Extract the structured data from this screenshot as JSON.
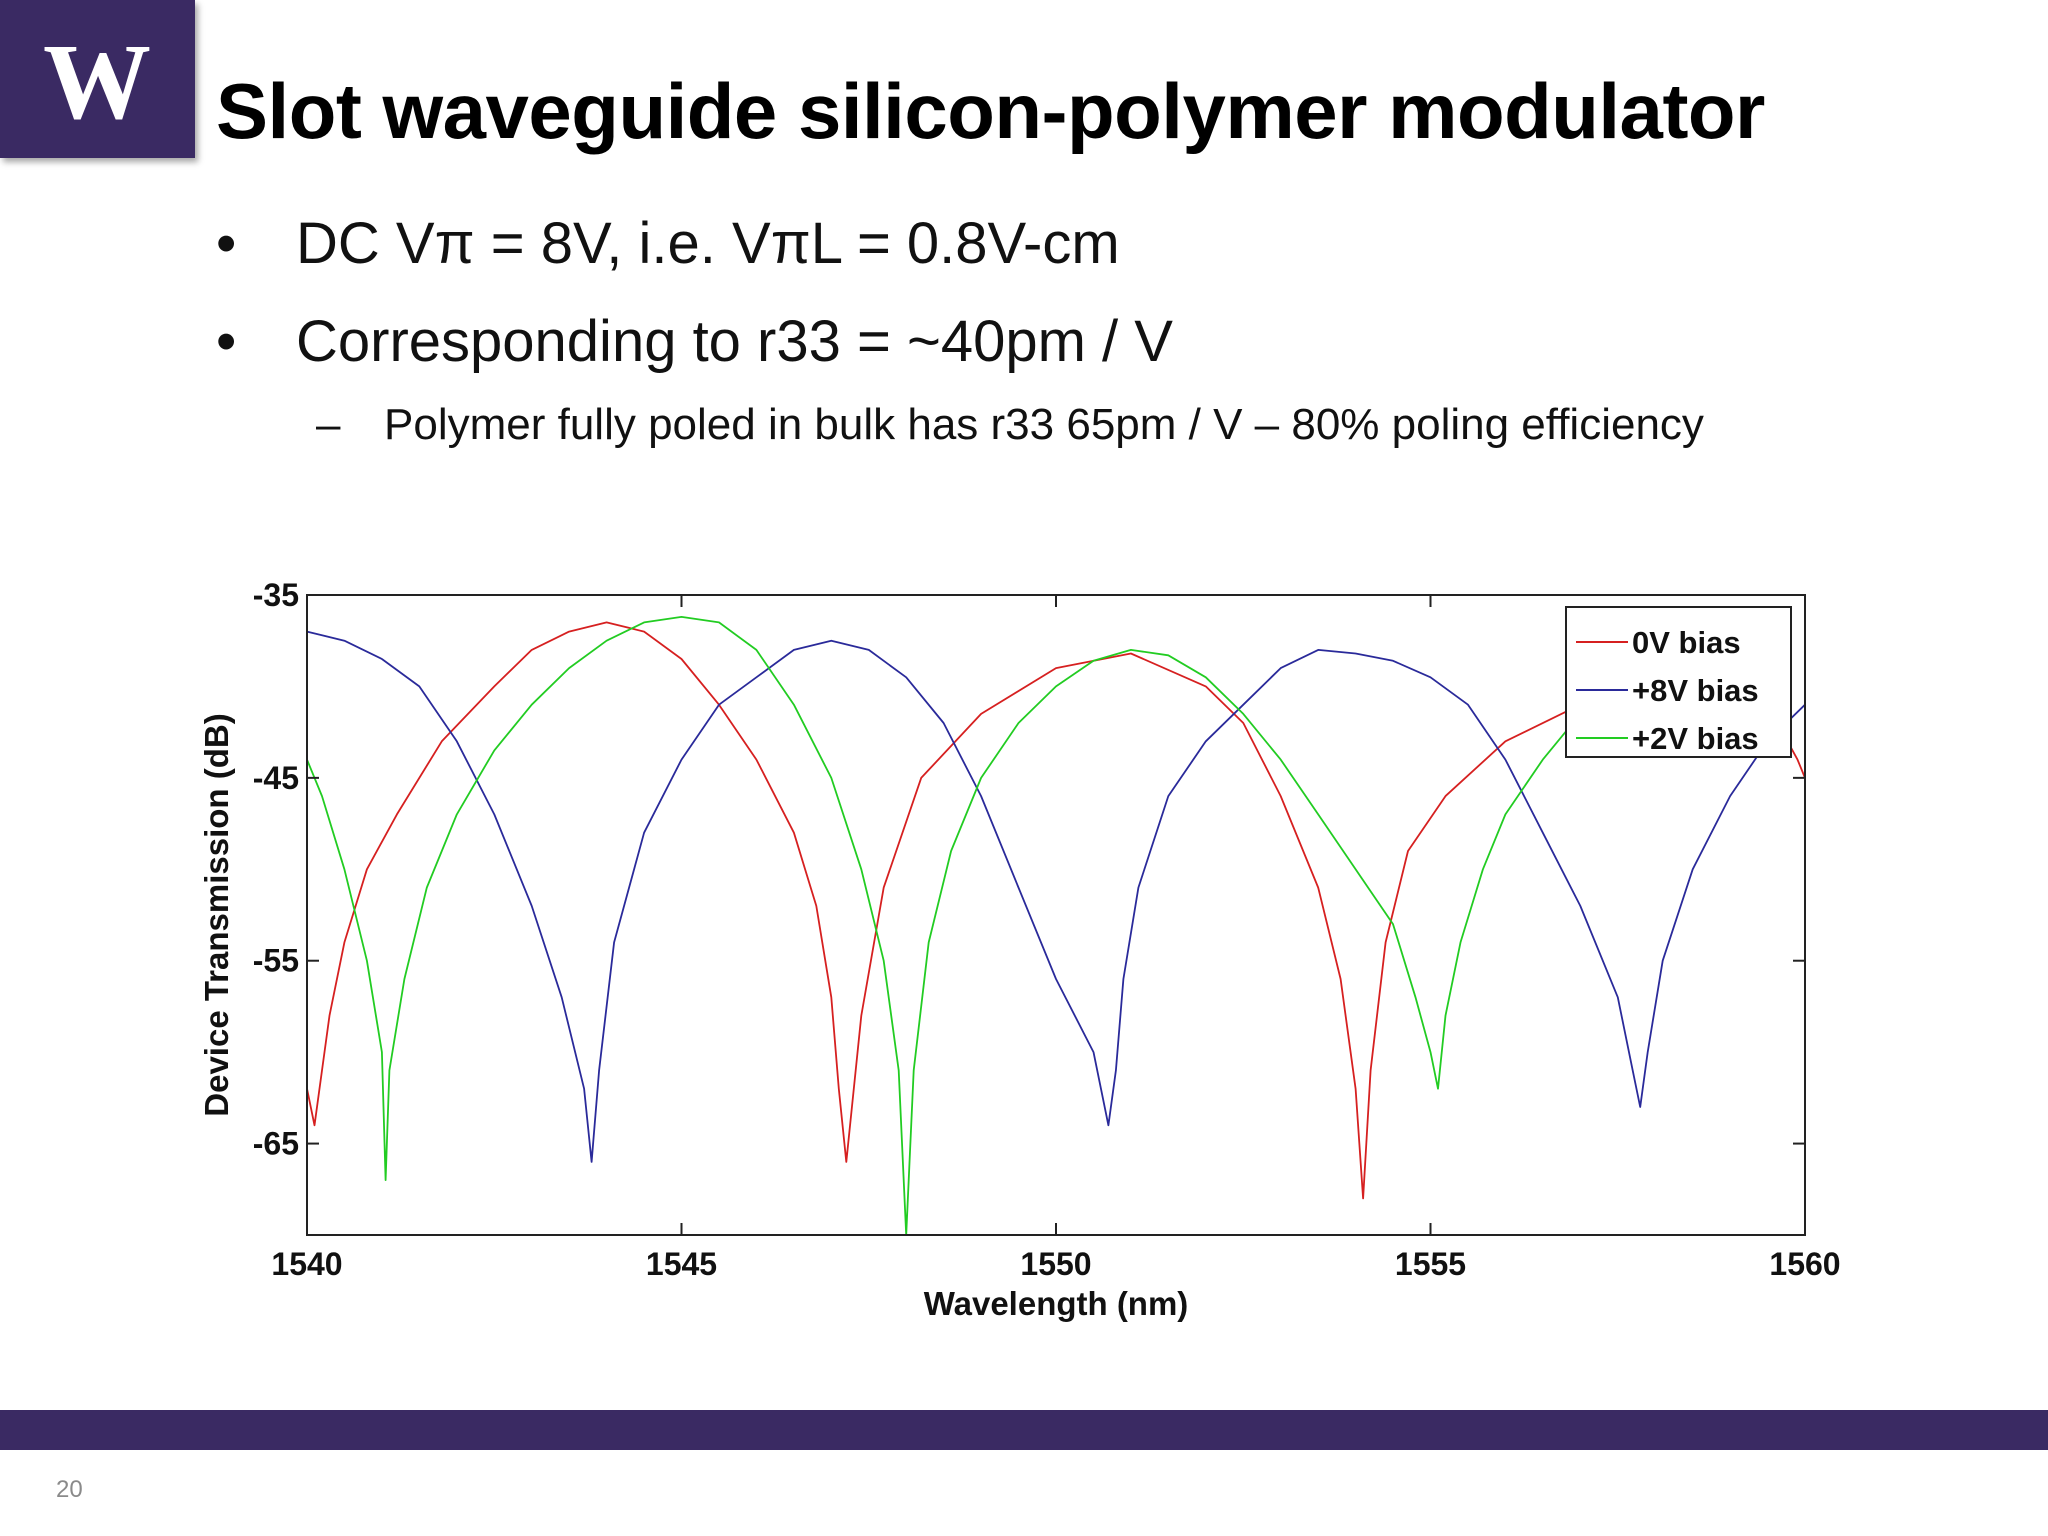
{
  "slide": {
    "logo_letter": "W",
    "title": "Slot waveguide silicon-polymer modulator",
    "bullets": [
      "DC Vπ = 8V, i.e. VπL = 0.8V-cm",
      "Corresponding to r33 = ~40pm / V"
    ],
    "sub_bullet": "Polymer fully poled in bulk has r33 65pm / V – 80% poling efficiency",
    "bullet_marker": "•",
    "sub_bullet_marker": "–",
    "page_number": "20",
    "brand_color": "#3a2a63"
  },
  "chart_data": {
    "type": "line",
    "title": "",
    "xlabel": "Wavelength (nm)",
    "ylabel": "Device Transmission (dB)",
    "xlim": [
      1540,
      1560
    ],
    "ylim": [
      -70,
      -35
    ],
    "x_ticks": [
      1540,
      1545,
      1550,
      1555,
      1560
    ],
    "y_ticks": [
      -35,
      -45,
      -55,
      -65
    ],
    "legend_position": "top-right",
    "grid": false,
    "series": [
      {
        "name": "0V bias",
        "color": "#d62020",
        "x": [
          1540.0,
          1540.1,
          1540.2,
          1540.3,
          1540.5,
          1540.8,
          1541.2,
          1541.8,
          1542.5,
          1543.0,
          1543.5,
          1544.0,
          1544.5,
          1545.0,
          1545.5,
          1546.0,
          1546.5,
          1546.8,
          1547.0,
          1547.1,
          1547.2,
          1547.4,
          1547.7,
          1548.2,
          1549.0,
          1550.0,
          1551.0,
          1552.0,
          1552.5,
          1553.0,
          1553.5,
          1553.8,
          1554.0,
          1554.1,
          1554.2,
          1554.4,
          1554.7,
          1555.2,
          1556.0,
          1557.0,
          1558.0,
          1559.0,
          1559.5,
          1559.9,
          1560.0
        ],
        "y": [
          -62,
          -64,
          -61,
          -58,
          -54,
          -50,
          -47,
          -43,
          -40,
          -38,
          -37,
          -36.5,
          -37,
          -38.5,
          -41,
          -44,
          -48,
          -52,
          -57,
          -62,
          -66,
          -58,
          -51,
          -45,
          -41.5,
          -39,
          -38.2,
          -40,
          -42,
          -46,
          -51,
          -56,
          -62,
          -68,
          -61,
          -54,
          -49,
          -46,
          -43,
          -41,
          -39.5,
          -39.5,
          -41,
          -44,
          -45
        ]
      },
      {
        "name": "+8V bias",
        "color": "#2a2a9a",
        "x": [
          1540.0,
          1540.5,
          1541.0,
          1541.5,
          1542.0,
          1542.5,
          1543.0,
          1543.4,
          1543.7,
          1543.8,
          1543.9,
          1544.1,
          1544.5,
          1545.0,
          1545.5,
          1546.0,
          1546.5,
          1547.0,
          1547.5,
          1548.0,
          1548.5,
          1549.0,
          1549.5,
          1550.0,
          1550.5,
          1550.7,
          1550.8,
          1550.9,
          1551.1,
          1551.5,
          1552.0,
          1552.5,
          1553.0,
          1553.5,
          1554.0,
          1554.5,
          1555.0,
          1555.5,
          1556.0,
          1556.5,
          1557.0,
          1557.5,
          1557.7,
          1557.8,
          1557.9,
          1558.1,
          1558.5,
          1559.0,
          1559.5,
          1560.0
        ],
        "y": [
          -37,
          -37.5,
          -38.5,
          -40,
          -43,
          -47,
          -52,
          -57,
          -62,
          -66,
          -61,
          -54,
          -48,
          -44,
          -41,
          -39.5,
          -38,
          -37.5,
          -38,
          -39.5,
          -42,
          -46,
          -51,
          -56,
          -60,
          -64,
          -61,
          -56,
          -51,
          -46,
          -43,
          -41,
          -39,
          -38,
          -38.2,
          -38.6,
          -39.5,
          -41,
          -44,
          -48,
          -52,
          -57,
          -61,
          -63,
          -60,
          -55,
          -50,
          -46,
          -43,
          -41
        ]
      },
      {
        "name": "+2V bias",
        "color": "#22cc22",
        "x": [
          1540.0,
          1540.2,
          1540.5,
          1540.8,
          1541.0,
          1541.05,
          1541.1,
          1541.3,
          1541.6,
          1542.0,
          1542.5,
          1543.0,
          1543.5,
          1544.0,
          1544.5,
          1545.0,
          1545.5,
          1546.0,
          1546.5,
          1547.0,
          1547.4,
          1547.7,
          1547.9,
          1548.0,
          1548.1,
          1548.3,
          1548.6,
          1549.0,
          1549.5,
          1550.0,
          1550.5,
          1551.0,
          1551.5,
          1552.0,
          1552.5,
          1553.0,
          1553.5,
          1554.0,
          1554.5,
          1554.8,
          1555.0,
          1555.1,
          1555.2,
          1555.4,
          1555.7,
          1556.0,
          1556.5,
          1557.0,
          1557.5,
          1558.0
        ],
        "y": [
          -44,
          -46,
          -50,
          -55,
          -60,
          -67,
          -61,
          -56,
          -51,
          -47,
          -43.5,
          -41,
          -39,
          -37.5,
          -36.5,
          -36.2,
          -36.5,
          -38,
          -41,
          -45,
          -50,
          -55,
          -61,
          -70,
          -61,
          -54,
          -49,
          -45,
          -42,
          -40,
          -38.6,
          -38,
          -38.3,
          -39.5,
          -41.5,
          -44,
          -47,
          -50,
          -53,
          -57,
          -60,
          -62,
          -58,
          -54,
          -50,
          -47,
          -44,
          -41.5,
          -39.8,
          -39
        ]
      }
    ]
  }
}
